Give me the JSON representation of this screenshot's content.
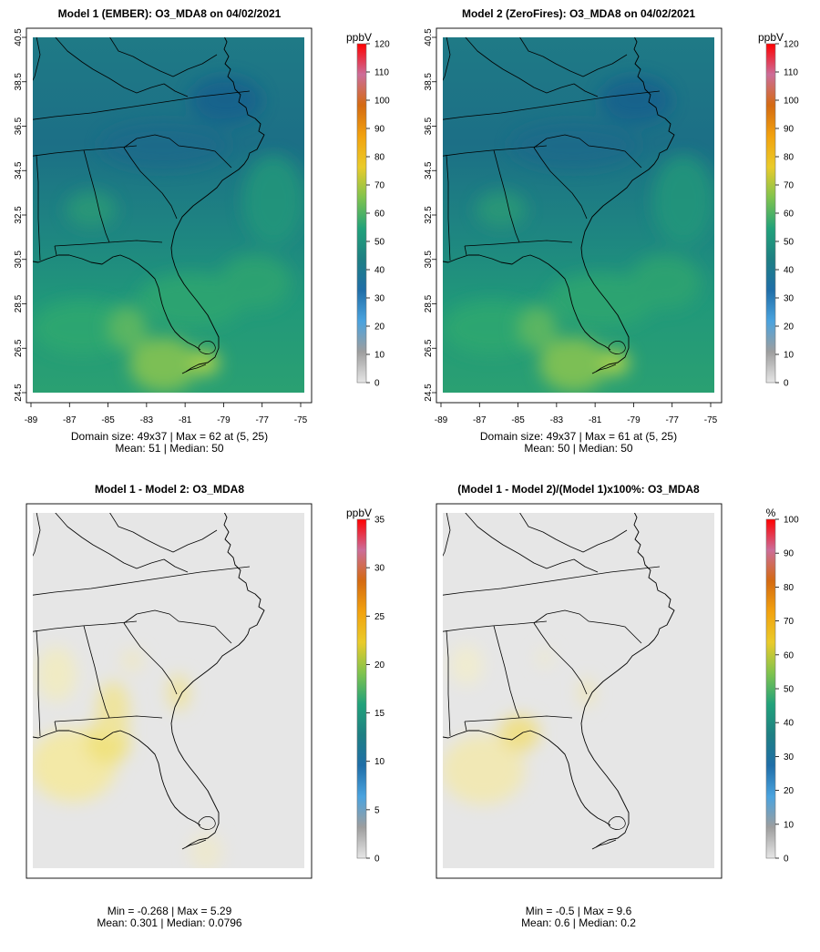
{
  "chart_data": [
    {
      "type": "heatmap",
      "title": "Model 1 (EMBER): O3_MDA8 on 04/02/2021",
      "variable": "O3_MDA8",
      "xlim": [
        -89,
        -75
      ],
      "ylim": [
        24.5,
        40.5
      ],
      "x_ticks": [
        "-89",
        "-87",
        "-85",
        "-83",
        "-81",
        "-79",
        "-77",
        "-75"
      ],
      "y_ticks": [
        "24.5",
        "26.5",
        "28.5",
        "30.5",
        "32.5",
        "34.5",
        "36.5",
        "38.5",
        "40.5"
      ],
      "colorbar": {
        "unit": "ppbV",
        "min": 0,
        "max": 120,
        "ticks": [
          "0",
          "10",
          "20",
          "30",
          "40",
          "50",
          "60",
          "70",
          "80",
          "90",
          "100",
          "110",
          "120"
        ]
      },
      "domain_size": "49x37",
      "stats": {
        "line1": "Domain size: 49x37 | Max = 62 at (5, 25)",
        "line2": "Mean: 51 |  Median: 50",
        "max": 62,
        "max_at": "(5, 25)",
        "mean": 51,
        "median": 50
      }
    },
    {
      "type": "heatmap",
      "title": "Model 2 (ZeroFires): O3_MDA8 on 04/02/2021",
      "variable": "O3_MDA8",
      "xlim": [
        -89,
        -75
      ],
      "ylim": [
        24.5,
        40.5
      ],
      "x_ticks": [
        "-89",
        "-87",
        "-85",
        "-83",
        "-81",
        "-79",
        "-77",
        "-75"
      ],
      "y_ticks": [
        "24.5",
        "26.5",
        "28.5",
        "30.5",
        "32.5",
        "34.5",
        "36.5",
        "38.5",
        "40.5"
      ],
      "colorbar": {
        "unit": "ppbV",
        "min": 0,
        "max": 120,
        "ticks": [
          "0",
          "10",
          "20",
          "30",
          "40",
          "50",
          "60",
          "70",
          "80",
          "90",
          "100",
          "110",
          "120"
        ]
      },
      "domain_size": "49x37",
      "stats": {
        "line1": "Domain size: 49x37 | Max = 61 at (5, 25)",
        "line2": "Mean: 50 |  Median: 50",
        "max": 61,
        "max_at": "(5, 25)",
        "mean": 50,
        "median": 50
      }
    },
    {
      "type": "heatmap",
      "title": "Model 1 - Model 2: O3_MDA8",
      "variable": "O3_MDA8",
      "colorbar": {
        "unit": "ppbV",
        "min": 0,
        "max": 35,
        "ticks": [
          "0",
          "5",
          "10",
          "15",
          "20",
          "25",
          "30",
          "35"
        ]
      },
      "stats": {
        "line1": "Min = -0.268 | Max = 5.29",
        "line2": "Mean: 0.301 |  Median: 0.0796",
        "min": -0.268,
        "max": 5.29,
        "mean": 0.301,
        "median": 0.0796
      }
    },
    {
      "type": "heatmap",
      "title": "(Model 1 - Model 2)/(Model 1)x100%: O3_MDA8",
      "variable": "O3_MDA8",
      "colorbar": {
        "unit": "%",
        "min": 0,
        "max": 100,
        "ticks": [
          "0",
          "10",
          "20",
          "30",
          "40",
          "50",
          "60",
          "70",
          "80",
          "90",
          "100"
        ]
      },
      "stats": {
        "line1": "Min = -0.5 | Max = 9.6",
        "line2": "Mean: 0.6 |  Median: 0.2",
        "min": -0.5,
        "max": 9.6,
        "mean": 0.6,
        "median": 0.2
      }
    }
  ],
  "colors": {
    "background": "#ffffff",
    "no_change_fill": "#e6e6e6",
    "outline": "#000000",
    "scale": [
      "#e6e6e6",
      "#9e9e9e",
      "#4aa3df",
      "#1f6ea8",
      "#1e7f83",
      "#21a27a",
      "#7fc34e",
      "#eacb2a",
      "#f2a20e",
      "#d46a12",
      "#cc6d99",
      "#ff0000"
    ]
  }
}
